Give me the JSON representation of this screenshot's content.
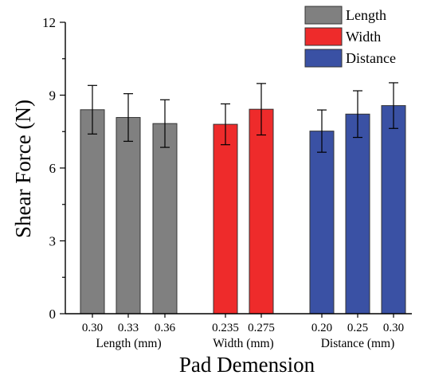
{
  "chart_data": {
    "type": "bar",
    "ylabel": "Shear Force (N)",
    "xlabel": "Pad Demension",
    "ylim": [
      0,
      12
    ],
    "yticks": [
      0,
      3,
      6,
      9,
      12
    ],
    "grid": false,
    "legend_position": "top-right",
    "groups": [
      {
        "name": "Length",
        "axis_label": "Length (mm)",
        "color": "#808080",
        "categories": [
          "0.30",
          "0.33",
          "0.36"
        ],
        "values": [
          8.4,
          8.08,
          7.83
        ],
        "errors": [
          1.0,
          0.98,
          0.98
        ]
      },
      {
        "name": "Width",
        "axis_label": "Width (mm)",
        "color": "#ee2b2b",
        "categories": [
          "0.235",
          "0.275"
        ],
        "values": [
          7.8,
          8.42
        ],
        "errors": [
          0.84,
          1.06
        ]
      },
      {
        "name": "Distance",
        "axis_label": "Distance (mm)",
        "color": "#3a51a4",
        "categories": [
          "0.20",
          "0.25",
          "0.30"
        ],
        "values": [
          7.52,
          8.22,
          8.57
        ],
        "errors": [
          0.87,
          0.96,
          0.94
        ]
      }
    ]
  }
}
